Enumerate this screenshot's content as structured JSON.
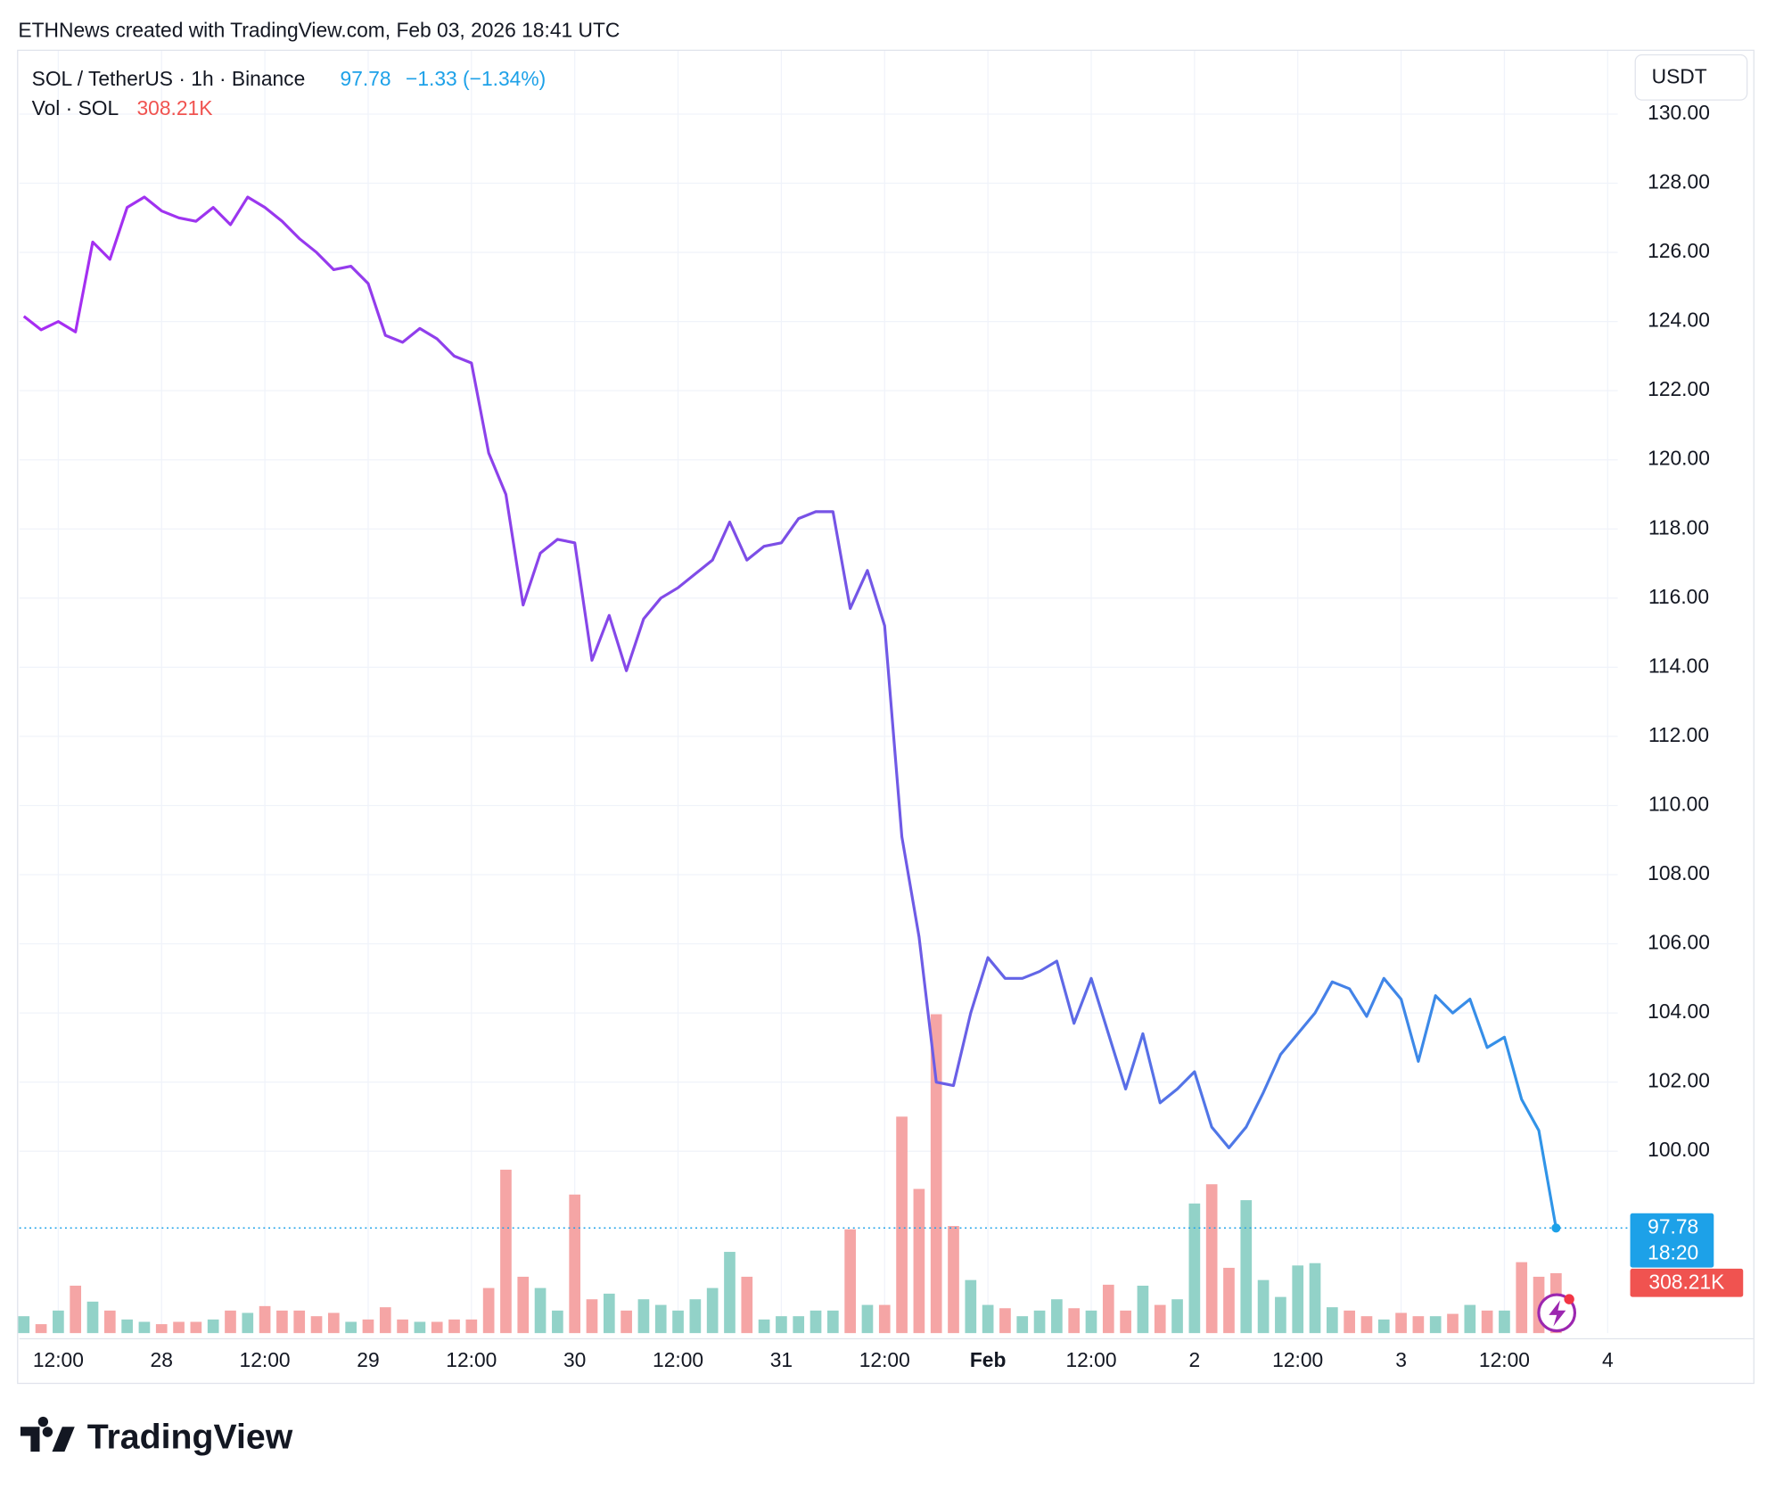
{
  "header": {
    "credit": "ETHNews created with TradingView.com, Feb 03, 2026 18:41 UTC",
    "change": "−1.33 (−1.34%)",
    "currency": "USDT",
    "time": "18:20",
    "brand": "TradingView"
  },
  "chart_data": [
    {
      "type": "line",
      "title": "SOL / TetherUS · 1h · Binance",
      "categories": [
        null,
        null,
        "12:00",
        null,
        null,
        null,
        null,
        null,
        "28",
        null,
        null,
        null,
        null,
        null,
        "12:00",
        null,
        null,
        null,
        null,
        null,
        "29",
        null,
        null,
        null,
        null,
        null,
        "12:00",
        null,
        null,
        null,
        null,
        null,
        "30",
        null,
        null,
        null,
        null,
        null,
        "12:00",
        null,
        null,
        null,
        null,
        null,
        "31",
        null,
        null,
        null,
        null,
        null,
        "12:00",
        null,
        null,
        null,
        null,
        null,
        "Feb",
        null,
        null,
        null,
        null,
        null,
        "12:00",
        null,
        null,
        null,
        null,
        null,
        "2",
        null,
        null,
        null,
        null,
        null,
        "12:00",
        null,
        null,
        null,
        null,
        null,
        "3",
        null,
        null,
        null,
        null,
        null,
        "12:00",
        null,
        null,
        null,
        null,
        null,
        "4"
      ],
      "series": [
        {
          "name": "SOL",
          "colors": [
            "#a82cf2",
            "#7a50e6",
            "#2f95e8"
          ],
          "values": [
            124.15,
            123.76,
            124.0,
            123.7,
            126.3,
            125.8,
            127.3,
            127.6,
            127.2,
            127.0,
            126.9,
            127.3,
            126.8,
            127.6,
            127.3,
            126.9,
            126.4,
            126.0,
            125.5,
            125.6,
            125.1,
            123.6,
            123.4,
            123.8,
            123.5,
            123.0,
            122.8,
            120.2,
            119.0,
            115.8,
            117.3,
            117.7,
            117.6,
            114.2,
            115.5,
            113.9,
            115.4,
            116.0,
            116.3,
            116.7,
            117.1,
            118.2,
            117.1,
            117.5,
            117.6,
            118.3,
            118.5,
            118.5,
            115.7,
            116.8,
            115.2,
            109.1,
            106.2,
            102.0,
            101.9,
            104.0,
            105.6,
            105.0,
            105.0,
            105.2,
            105.5,
            103.7,
            105.0,
            103.4,
            101.8,
            103.4,
            101.4,
            101.8,
            102.3,
            100.7,
            100.1,
            100.7,
            101.7,
            102.8,
            103.4,
            104.0,
            104.9,
            104.7,
            103.9,
            105.0,
            104.4,
            102.6,
            104.5,
            104.0,
            104.4,
            103.0,
            103.3,
            101.5,
            100.6,
            97.78,
            null,
            null,
            null
          ]
        }
      ],
      "ylim": [
        94.74,
        131.83
      ],
      "yticks": [
        {
          "value": 100,
          "label": "100.00"
        },
        {
          "value": 102,
          "label": "102.00"
        },
        {
          "value": 104,
          "label": "104.00"
        },
        {
          "value": 106,
          "label": "106.00"
        },
        {
          "value": 108,
          "label": "108.00"
        },
        {
          "value": 110,
          "label": "110.00"
        },
        {
          "value": 112,
          "label": "112.00"
        },
        {
          "value": 114,
          "label": "114.00"
        },
        {
          "value": 116,
          "label": "116.00"
        },
        {
          "value": 118,
          "label": "118.00"
        },
        {
          "value": 120,
          "label": "120.00"
        },
        {
          "value": 122,
          "label": "122.00"
        },
        {
          "value": 124,
          "label": "124.00"
        },
        {
          "value": 126,
          "label": "126.00"
        },
        {
          "value": 128,
          "label": "128.00"
        },
        {
          "value": 130,
          "label": "130.00"
        }
      ],
      "grid": true,
      "last_color": "#1da1e8"
    },
    {
      "type": "bar",
      "title": "Vol · SOL",
      "up_color": "#92d2c8",
      "down_color": "#f5a5a5",
      "label_color": "#f05350",
      "values": [
        87,
        46,
        116,
        244,
        162,
        116,
        70,
        58,
        46,
        58,
        58,
        70,
        116,
        104,
        139,
        116,
        116,
        87,
        104,
        58,
        70,
        133,
        70,
        58,
        58,
        70,
        70,
        232,
        841,
        290,
        232,
        116,
        713,
        174,
        203,
        116,
        174,
        145,
        116,
        174,
        232,
        418,
        290,
        70,
        87,
        87,
        116,
        116,
        534,
        145,
        145,
        1114,
        742,
        1641,
        551,
        273,
        145,
        128,
        87,
        116,
        174,
        128,
        116,
        249,
        116,
        244,
        145,
        174,
        667,
        766,
        336,
        684,
        273,
        186,
        348,
        360,
        133,
        116,
        87,
        70,
        104,
        87,
        87,
        99,
        145,
        116,
        116,
        365,
        290,
        308.21,
        null,
        null,
        null
      ],
      "value_labels": [
        null,
        null,
        null,
        null,
        null,
        null,
        null,
        null,
        null,
        null,
        null,
        null,
        null,
        null,
        null,
        null,
        null,
        null,
        null,
        null,
        null,
        null,
        null,
        null,
        null,
        null,
        null,
        null,
        null,
        null,
        null,
        null,
        null,
        null,
        null,
        null,
        null,
        null,
        null,
        null,
        null,
        null,
        null,
        null,
        null,
        null,
        null,
        null,
        null,
        null,
        null,
        null,
        null,
        null,
        null,
        null,
        null,
        null,
        null,
        null,
        null,
        null,
        null,
        null,
        null,
        null,
        null,
        null,
        null,
        null,
        null,
        null,
        null,
        null,
        null,
        null,
        null,
        null,
        null,
        null,
        null,
        null,
        null,
        null,
        null,
        null,
        null,
        null,
        null,
        "308.21K",
        null,
        null,
        null
      ]
    }
  ]
}
